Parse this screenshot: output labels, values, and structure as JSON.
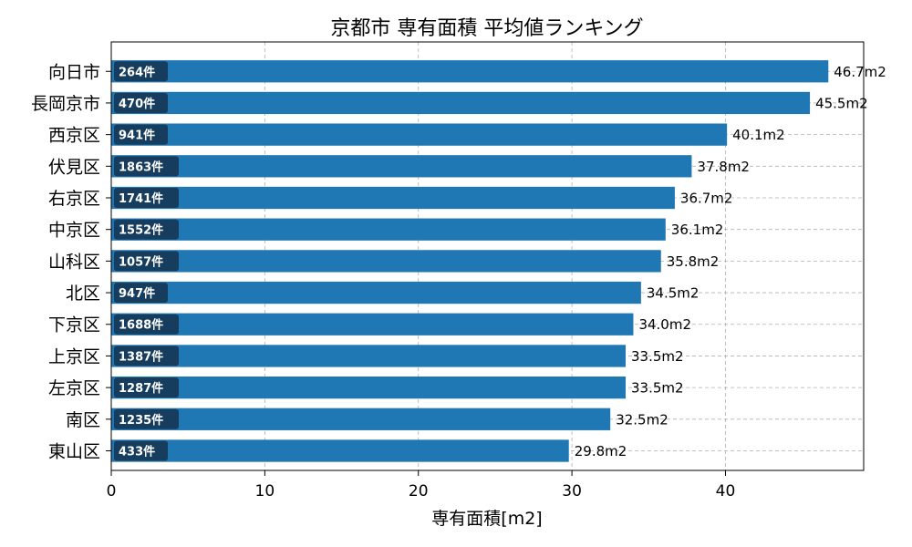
{
  "chart_data": {
    "type": "bar",
    "orientation": "horizontal",
    "title": "京都市 専有面積 平均値ランキング",
    "xlabel": "専有面積[m2]",
    "ylabel": "",
    "xlim": [
      0,
      49
    ],
    "xticks": [
      0,
      10,
      20,
      30,
      40
    ],
    "grid": true,
    "categories": [
      "向日市",
      "長岡京市",
      "西京区",
      "伏見区",
      "右京区",
      "中京区",
      "山科区",
      "北区",
      "下京区",
      "上京区",
      "左京区",
      "南区",
      "東山区"
    ],
    "values": [
      46.7,
      45.5,
      40.1,
      37.8,
      36.7,
      36.1,
      35.8,
      34.5,
      34.0,
      33.5,
      33.5,
      32.5,
      29.8
    ],
    "value_labels": [
      "46.7m2",
      "45.5m2",
      "40.1m2",
      "37.8m2",
      "36.7m2",
      "36.1m2",
      "35.8m2",
      "34.5m2",
      "34.0m2",
      "33.5m2",
      "33.5m2",
      "32.5m2",
      "29.8m2"
    ],
    "count_labels": [
      "264件",
      "470件",
      "941件",
      "1863件",
      "1741件",
      "1552件",
      "1057件",
      "947件",
      "1688件",
      "1387件",
      "1287件",
      "1235件",
      "433件"
    ],
    "colors": {
      "bar": "#1f77b4",
      "count_badge": "#173d5e",
      "grid": "#b0b0b0",
      "axis": "#000000"
    }
  }
}
